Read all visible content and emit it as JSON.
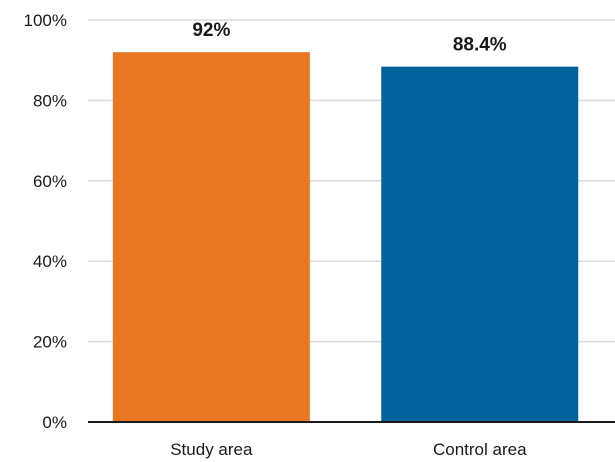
{
  "chart_data": {
    "type": "bar",
    "categories": [
      "Study area",
      "Control area"
    ],
    "values": [
      92,
      88.4
    ],
    "data_labels": [
      "92%",
      "88.4%"
    ],
    "colors": [
      "#E87722",
      "#00629B"
    ],
    "title": "",
    "xlabel": "",
    "ylabel": "",
    "ylim": [
      0,
      100
    ],
    "yticks": [
      0,
      20,
      40,
      60,
      80,
      100
    ],
    "ytick_labels": [
      "0%",
      "20%",
      "40%",
      "60%",
      "80%",
      "100%"
    ],
    "grid": true,
    "legend": "none"
  }
}
